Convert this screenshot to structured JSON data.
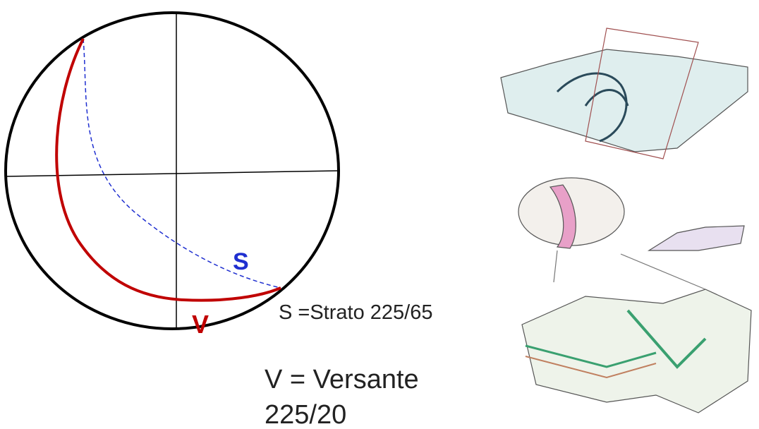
{
  "strato": {
    "symbol": "S",
    "text": "S =Strato 225/65"
  },
  "versante": {
    "symbol": "V",
    "text": "V = Versante",
    "attitude": "225/20"
  }
}
